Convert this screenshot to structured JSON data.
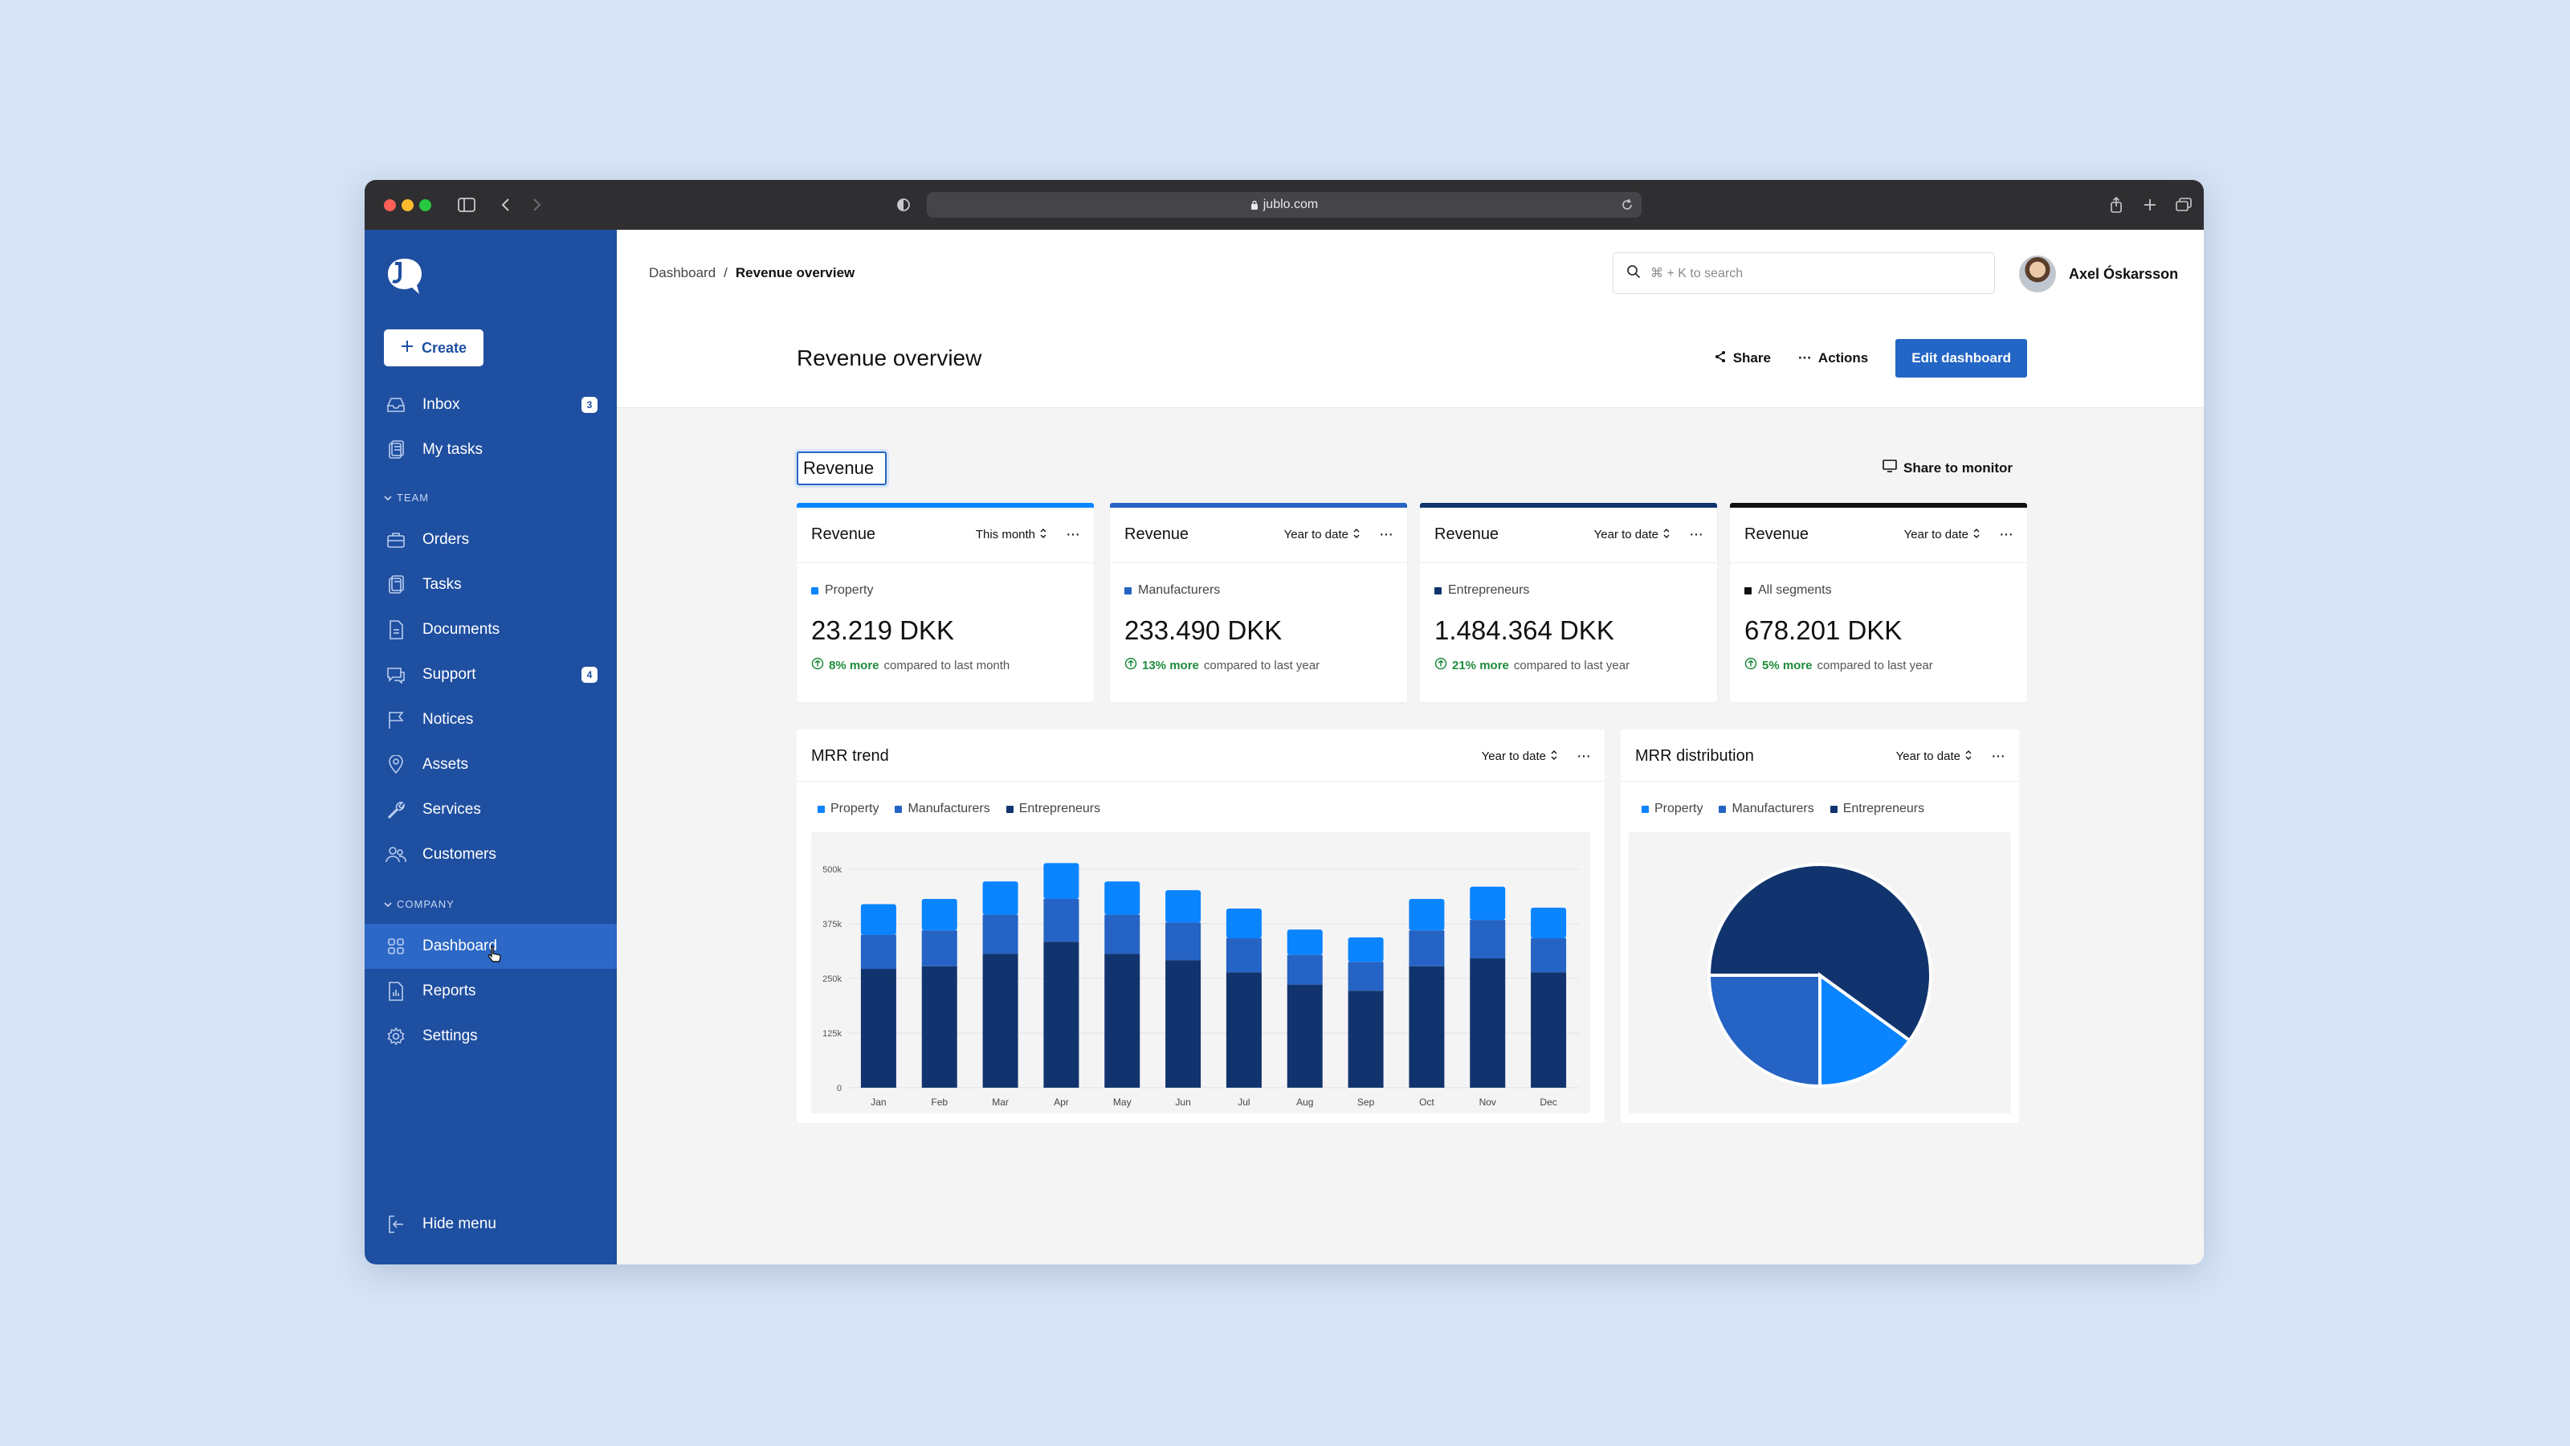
{
  "browser": {
    "url": "jublo.com"
  },
  "sidebar": {
    "create_label": "Create",
    "items_top": [
      {
        "label": "Inbox",
        "icon": "inbox-icon",
        "badge": "3"
      },
      {
        "label": "My tasks",
        "icon": "clipboard-icon",
        "badge": ""
      }
    ],
    "team_label": "TEAM",
    "team_items": [
      {
        "label": "Orders",
        "icon": "briefcase-icon",
        "badge": ""
      },
      {
        "label": "Tasks",
        "icon": "clipboard-icon",
        "badge": ""
      },
      {
        "label": "Documents",
        "icon": "document-icon",
        "badge": ""
      },
      {
        "label": "Support",
        "icon": "chat-icon",
        "badge": "4"
      },
      {
        "label": "Notices",
        "icon": "flag-icon",
        "badge": ""
      },
      {
        "label": "Assets",
        "icon": "pin-icon",
        "badge": ""
      },
      {
        "label": "Services",
        "icon": "wrench-icon",
        "badge": ""
      },
      {
        "label": "Customers",
        "icon": "users-icon",
        "badge": ""
      }
    ],
    "company_label": "COMPANY",
    "company_items": [
      {
        "label": "Dashboard",
        "icon": "grid-icon",
        "badge": "",
        "active": true
      },
      {
        "label": "Reports",
        "icon": "chart-icon",
        "badge": ""
      },
      {
        "label": "Settings",
        "icon": "gear-icon",
        "badge": ""
      }
    ],
    "hide_menu_label": "Hide menu"
  },
  "header": {
    "breadcrumb_root": "Dashboard",
    "breadcrumb_sep": "/",
    "breadcrumb_current": "Revenue overview",
    "search_placeholder": "⌘ + K to search",
    "user_name": "Axel Óskarsson",
    "page_title": "Revenue overview",
    "share_label": "Share",
    "actions_label": "Actions",
    "edit_label": "Edit dashboard"
  },
  "section": {
    "title": "Revenue",
    "share_monitor_label": "Share to monitor"
  },
  "kpis": [
    {
      "title": "Revenue",
      "range": "This month",
      "segment": "Property",
      "color": "#0a84ff",
      "value": "23.219 DKK",
      "pct": "8% more",
      "compare": "compared to last month"
    },
    {
      "title": "Revenue",
      "range": "Year to date",
      "segment": "Manufacturers",
      "color": "#2563c4",
      "value": "233.490 DKK",
      "pct": "13% more",
      "compare": "compared to last year"
    },
    {
      "title": "Revenue",
      "range": "Year to date",
      "segment": "Entrepreneurs",
      "color": "#12346e",
      "value": "1.484.364 DKK",
      "pct": "21% more",
      "compare": "compared to last year"
    },
    {
      "title": "Revenue",
      "range": "Year to date",
      "segment": "All segments",
      "color": "#111111",
      "value": "678.201 DKK",
      "pct": "5% more",
      "compare": "compared to last year"
    }
  ],
  "mrr_trend": {
    "title": "MRR trend",
    "range": "Year to date",
    "legend": [
      "Property",
      "Manufacturers",
      "Entrepreneurs"
    ]
  },
  "mrr_distribution": {
    "title": "MRR distribution",
    "range": "Year to date",
    "legend": [
      "Property",
      "Manufacturers",
      "Entrepreneurs"
    ]
  },
  "colors": {
    "property": "#0a84ff",
    "manufacturers": "#2563c4",
    "entrepreneurs": "#12346e",
    "sidebar": "#1f4fa0",
    "accent": "#2466c5"
  },
  "chart_data": [
    {
      "type": "bar",
      "stacked": true,
      "title": "MRR trend",
      "categories": [
        "Jan",
        "Feb",
        "Mar",
        "Apr",
        "May",
        "Jun",
        "Jul",
        "Aug",
        "Sep",
        "Oct",
        "Nov",
        "Dec"
      ],
      "y_ticks": [
        "0",
        "125k",
        "250k",
        "375k",
        "500k"
      ],
      "ylim": [
        0,
        500000
      ],
      "grid": true,
      "series": [
        {
          "name": "Entrepreneurs",
          "color": "#12346e",
          "values": [
            272000,
            278000,
            306000,
            334000,
            306000,
            292000,
            264000,
            236000,
            222000,
            278000,
            296000,
            264000
          ]
        },
        {
          "name": "Manufacturers",
          "color": "#2563c4",
          "values": [
            78000,
            82000,
            90000,
            98000,
            90000,
            86000,
            78000,
            68000,
            66000,
            82000,
            88000,
            78000
          ]
        },
        {
          "name": "Property",
          "color": "#0a84ff",
          "values": [
            70000,
            72000,
            76000,
            82000,
            76000,
            74000,
            68000,
            58000,
            56000,
            72000,
            76000,
            70000
          ]
        }
      ]
    },
    {
      "type": "pie",
      "title": "MRR distribution",
      "labels": [
        "Entrepreneurs",
        "Property",
        "Manufacturers"
      ],
      "values": [
        60,
        15,
        25
      ],
      "colors": [
        "#12346e",
        "#0a84ff",
        "#2563c4"
      ]
    }
  ]
}
